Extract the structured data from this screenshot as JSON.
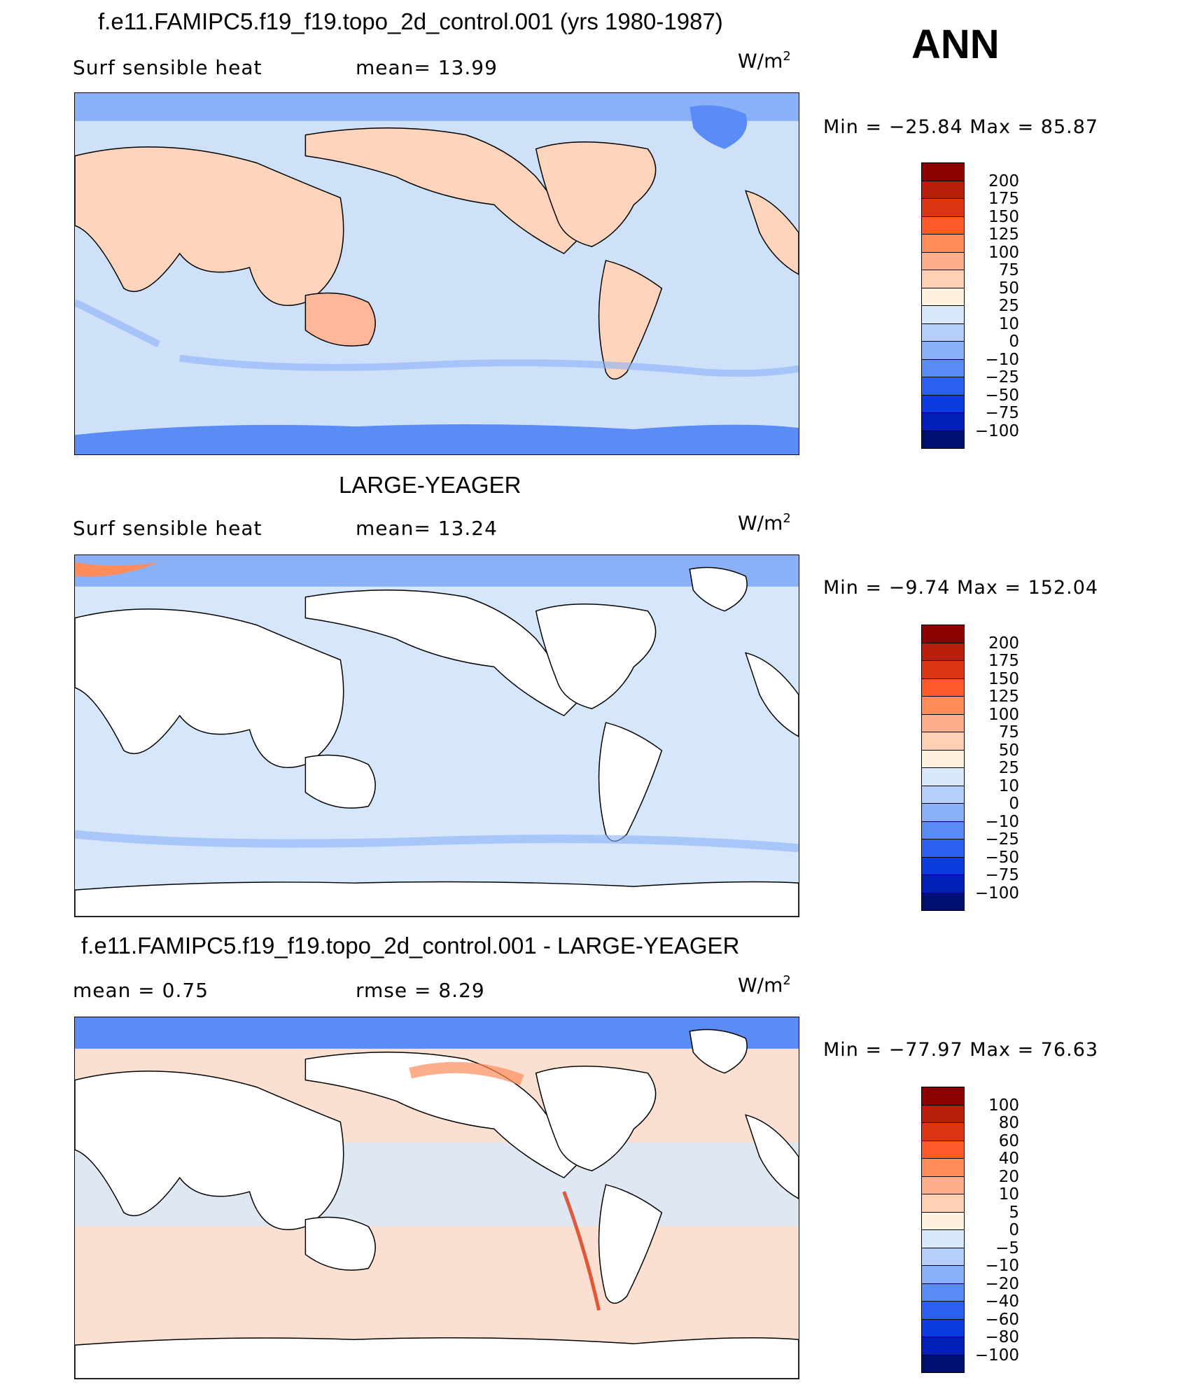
{
  "season": "ANN",
  "panels": [
    {
      "title": "f.e11.FAMIPC5.f19_f19.topo_2d_control.001 (yrs 1980-1987)",
      "left_label": "Surf  sensible  heat",
      "mid_label": "mean=   13.99",
      "units": "W/m",
      "units_sup": "2",
      "minmax": "Min  =  −25.84  Max  =    85.87",
      "colorbar": {
        "labels": [
          "200",
          "175",
          "150",
          "125",
          "100",
          "75",
          "50",
          "25",
          "10",
          "0",
          "−10",
          "−25",
          "−50",
          "−75",
          "−100"
        ],
        "colors": [
          "#8b0000",
          "#b81e0a",
          "#dc3514",
          "#ff5a28",
          "#ff8c5a",
          "#ffae8c",
          "#ffd0b4",
          "#fff0e0",
          "#d8eafa",
          "#b4cffa",
          "#8ab0f8",
          "#5a8cf5",
          "#2a5ff0",
          "#0b3ce0",
          "#0020b8",
          "#001070"
        ]
      },
      "land_fill": "#ffd4bd",
      "ocean_fill": "#cfe1f9"
    },
    {
      "title": "LARGE-YEAGER",
      "left_label": "Surf  sensible  heat",
      "mid_label": "mean=   13.24",
      "units": "W/m",
      "units_sup": "2",
      "minmax": "Min  =    −9.74  Max  =  152.04",
      "colorbar": {
        "labels": [
          "200",
          "175",
          "150",
          "125",
          "100",
          "75",
          "50",
          "25",
          "10",
          "0",
          "−10",
          "−25",
          "−50",
          "−75",
          "−100"
        ],
        "colors": [
          "#8b0000",
          "#b81e0a",
          "#dc3514",
          "#ff5a28",
          "#ff8c5a",
          "#ffae8c",
          "#ffd0b4",
          "#fff0e0",
          "#d8eafa",
          "#b4cffa",
          "#8ab0f8",
          "#5a8cf5",
          "#2a5ff0",
          "#0b3ce0",
          "#0020b8",
          "#001070"
        ]
      },
      "land_fill": "#ffffff",
      "ocean_fill": "#d6e6fb"
    },
    {
      "title": "f.e11.FAMIPC5.f19_f19.topo_2d_control.001 - LARGE-YEAGER",
      "left_label": "mean  =     0.75",
      "mid_label": "rmse  =     8.29",
      "units": "W/m",
      "units_sup": "2",
      "minmax": "Min  =  −77.97  Max  =    76.63",
      "colorbar": {
        "labels": [
          "100",
          "80",
          "60",
          "40",
          "20",
          "10",
          "5",
          "0",
          "−5",
          "−10",
          "−20",
          "−40",
          "−60",
          "−80",
          "−100"
        ],
        "colors": [
          "#8b0000",
          "#b81e0a",
          "#dc3514",
          "#ff5a28",
          "#ff8c5a",
          "#ffae8c",
          "#ffd0b4",
          "#fff0e0",
          "#d8eafa",
          "#b4cffa",
          "#8ab0f8",
          "#5a8cf5",
          "#2a5ff0",
          "#0b3ce0",
          "#0020b8",
          "#001070"
        ]
      },
      "land_fill": "#ffffff",
      "ocean_fill": "#fbe0d2"
    }
  ],
  "chart_data": [
    {
      "type": "heatmap",
      "title": "f.e11.FAMIPC5.f19_f19.topo_2d_control.001 (yrs 1980-1987)",
      "variable": "Surf sensible heat",
      "units": "W/m^2",
      "mean": 13.99,
      "min": -25.84,
      "max": 85.87,
      "levels": [
        -100,
        -75,
        -50,
        -25,
        -10,
        0,
        10,
        25,
        50,
        75,
        100,
        125,
        150,
        175,
        200
      ]
    },
    {
      "type": "heatmap",
      "title": "LARGE-YEAGER",
      "variable": "Surf sensible heat",
      "units": "W/m^2",
      "mean": 13.24,
      "min": -9.74,
      "max": 152.04,
      "levels": [
        -100,
        -75,
        -50,
        -25,
        -10,
        0,
        10,
        25,
        50,
        75,
        100,
        125,
        150,
        175,
        200
      ]
    },
    {
      "type": "heatmap",
      "title": "f.e11.FAMIPC5.f19_f19.topo_2d_control.001 - LARGE-YEAGER",
      "units": "W/m^2",
      "mean": 0.75,
      "rmse": 8.29,
      "min": -77.97,
      "max": 76.63,
      "levels": [
        -100,
        -80,
        -60,
        -40,
        -20,
        -10,
        -5,
        0,
        5,
        10,
        20,
        40,
        60,
        80,
        100
      ]
    }
  ]
}
